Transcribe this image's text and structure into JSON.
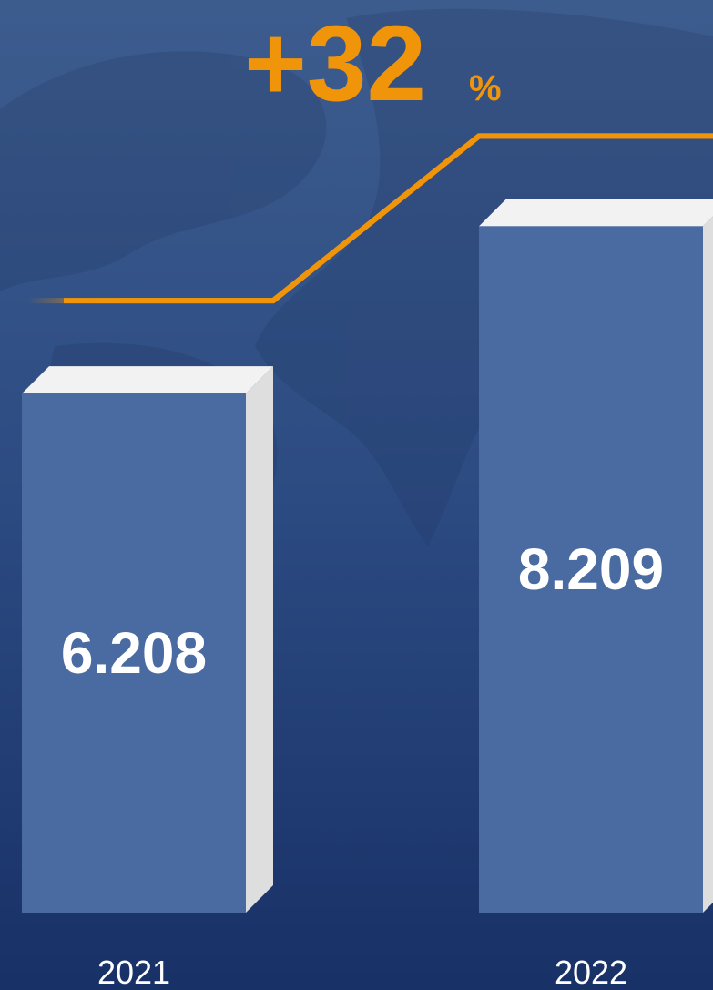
{
  "chart_data": {
    "type": "bar3d",
    "annotation": {
      "text": "+32",
      "unit": "%"
    },
    "categories": [
      "2021",
      "2022"
    ],
    "values": [
      6.208,
      8.209
    ],
    "color": "#4a6ba1",
    "line_color": "#f0940a"
  }
}
